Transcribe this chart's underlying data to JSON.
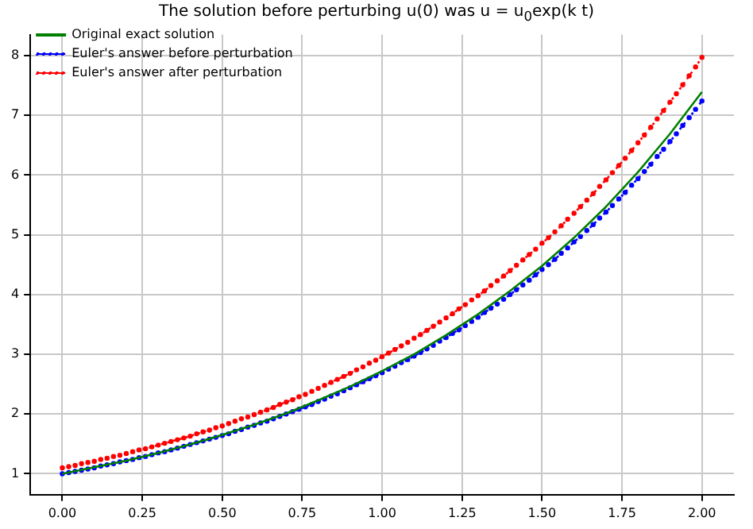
{
  "chart_data": {
    "type": "line",
    "title": "The solution before perturbing u(0) was u = u$_{0}$exp(k t)",
    "x": [
      0,
      0.02,
      0.04,
      0.06,
      0.08,
      0.1,
      0.12,
      0.14,
      0.16,
      0.18,
      0.2,
      0.22,
      0.24,
      0.26,
      0.28,
      0.3,
      0.32,
      0.34,
      0.36,
      0.38,
      0.4,
      0.42,
      0.44,
      0.46,
      0.48,
      0.5,
      0.52,
      0.54,
      0.56,
      0.58,
      0.6,
      0.62,
      0.64,
      0.66,
      0.68,
      0.7,
      0.72,
      0.74,
      0.76,
      0.78,
      0.8,
      0.82,
      0.84,
      0.86,
      0.88,
      0.9,
      0.92,
      0.94,
      0.96,
      0.98,
      1,
      1.02,
      1.04,
      1.06,
      1.08,
      1.1,
      1.12,
      1.14,
      1.16,
      1.18,
      1.2,
      1.22,
      1.24,
      1.26,
      1.28,
      1.3,
      1.32,
      1.34,
      1.36,
      1.38,
      1.4,
      1.42,
      1.44,
      1.46,
      1.48,
      1.5,
      1.52,
      1.54,
      1.56,
      1.58,
      1.6,
      1.62,
      1.64,
      1.66,
      1.68,
      1.7,
      1.72,
      1.74,
      1.76,
      1.78,
      1.8,
      1.82,
      1.84,
      1.86,
      1.88,
      1.9,
      1.92,
      1.94,
      1.96,
      1.98,
      2
    ],
    "series": [
      {
        "name": "Original exact solution",
        "color": "#008000",
        "marker": "none",
        "line_style": "solid",
        "x": [
          0,
          0.1,
          0.2,
          0.3,
          0.4,
          0.5,
          0.6,
          0.7,
          0.8,
          0.9,
          1,
          1.1,
          1.2,
          1.3,
          1.4,
          1.5,
          1.6,
          1.7,
          1.8,
          1.9,
          2
        ],
        "values": [
          1.0,
          1.11,
          1.22,
          1.35,
          1.49,
          1.65,
          1.82,
          2.01,
          2.23,
          2.46,
          2.72,
          3.0,
          3.32,
          3.67,
          4.06,
          4.48,
          4.95,
          5.47,
          6.05,
          6.69,
          7.39
        ]
      },
      {
        "name": "Euler's answer before perturbation",
        "color": "#0000ff",
        "marker": "circle",
        "line_style": "dotted",
        "values": [
          1.0,
          1.02,
          1.04,
          1.06,
          1.08,
          1.1,
          1.13,
          1.15,
          1.17,
          1.2,
          1.22,
          1.24,
          1.27,
          1.29,
          1.32,
          1.35,
          1.37,
          1.4,
          1.43,
          1.46,
          1.49,
          1.52,
          1.55,
          1.58,
          1.61,
          1.64,
          1.67,
          1.71,
          1.74,
          1.78,
          1.81,
          1.85,
          1.88,
          1.92,
          1.96,
          2.0,
          2.04,
          2.08,
          2.12,
          2.16,
          2.21,
          2.25,
          2.3,
          2.34,
          2.39,
          2.44,
          2.49,
          2.54,
          2.59,
          2.64,
          2.69,
          2.75,
          2.8,
          2.86,
          2.91,
          2.97,
          3.03,
          3.09,
          3.15,
          3.22,
          3.28,
          3.35,
          3.41,
          3.48,
          3.55,
          3.62,
          3.7,
          3.77,
          3.84,
          3.92,
          4.0,
          4.08,
          4.16,
          4.24,
          4.33,
          4.42,
          4.5,
          4.59,
          4.69,
          4.78,
          4.88,
          4.97,
          5.07,
          5.17,
          5.28,
          5.38,
          5.49,
          5.6,
          5.71,
          5.83,
          5.94,
          6.06,
          6.18,
          6.31,
          6.43,
          6.56,
          6.69,
          6.83,
          6.96,
          7.1,
          7.24
        ]
      },
      {
        "name": "Euler's answer after perturbation",
        "color": "#ff0000",
        "marker": "circle",
        "line_style": "dotted",
        "values": [
          1.1,
          1.12,
          1.14,
          1.17,
          1.19,
          1.21,
          1.24,
          1.26,
          1.29,
          1.31,
          1.34,
          1.37,
          1.4,
          1.42,
          1.45,
          1.48,
          1.51,
          1.54,
          1.57,
          1.6,
          1.63,
          1.67,
          1.7,
          1.73,
          1.77,
          1.8,
          1.84,
          1.88,
          1.92,
          1.95,
          1.99,
          2.03,
          2.07,
          2.11,
          2.16,
          2.2,
          2.24,
          2.29,
          2.33,
          2.38,
          2.43,
          2.48,
          2.53,
          2.58,
          2.63,
          2.68,
          2.74,
          2.79,
          2.85,
          2.9,
          2.96,
          3.02,
          3.08,
          3.14,
          3.2,
          3.27,
          3.33,
          3.4,
          3.47,
          3.54,
          3.61,
          3.68,
          3.76,
          3.83,
          3.91,
          3.98,
          4.06,
          4.15,
          4.23,
          4.31,
          4.4,
          4.49,
          4.58,
          4.67,
          4.76,
          4.86,
          4.95,
          5.05,
          5.15,
          5.26,
          5.36,
          5.47,
          5.58,
          5.69,
          5.81,
          5.92,
          6.04,
          6.16,
          6.28,
          6.41,
          6.54,
          6.67,
          6.8,
          6.94,
          7.08,
          7.22,
          7.36,
          7.51,
          7.66,
          7.81,
          7.97
        ]
      }
    ],
    "xlim": [
      -0.1,
      2.1
    ],
    "xticks": [
      {
        "value": 0,
        "label": "0.00"
      },
      {
        "value": 0.25,
        "label": "0.25"
      },
      {
        "value": 0.5,
        "label": "0.50"
      },
      {
        "value": 0.75,
        "label": "0.75"
      },
      {
        "value": 1,
        "label": "1.00"
      },
      {
        "value": 1.25,
        "label": "1.25"
      },
      {
        "value": 1.5,
        "label": "1.50"
      },
      {
        "value": 1.75,
        "label": "1.75"
      },
      {
        "value": 2,
        "label": "2.00"
      }
    ],
    "ylim": [
      0.65,
      8.35
    ],
    "yticks": [
      1,
      2,
      3,
      4,
      5,
      6,
      7,
      8
    ],
    "grid": true,
    "legend": "top left"
  }
}
